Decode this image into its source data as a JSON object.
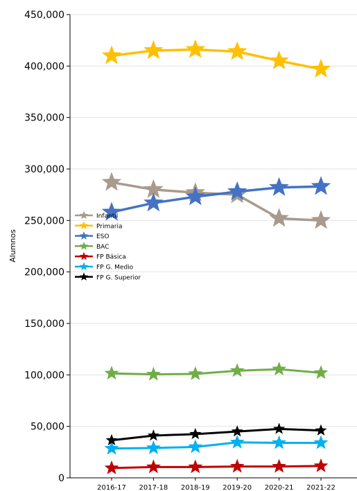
{
  "chart_data": {
    "type": "line",
    "title": "",
    "xlabel": "",
    "ylabel": "Alumnos",
    "categories": [
      "2016-17",
      "2017-18",
      "2018-19",
      "2019-20",
      "2020-21",
      "2021-22"
    ],
    "ylim": [
      0,
      450000
    ],
    "yticks": [
      0,
      50000,
      100000,
      150000,
      200000,
      250000,
      300000,
      350000,
      400000,
      450000
    ],
    "ytick_labels": [
      "0",
      "50,000",
      "100,000",
      "150,000",
      "200,000",
      "250,000",
      "300,000",
      "350,000",
      "400,000",
      "450,000"
    ],
    "grid": "horizontal",
    "legend_position": "center-left",
    "marker": "star",
    "series": [
      {
        "name": "Infantil",
        "color": "#a89a8c",
        "size": "large",
        "values": [
          287000,
          280000,
          277000,
          275000,
          252000,
          250000
        ]
      },
      {
        "name": "Primaria",
        "color": "#ffc000",
        "size": "large",
        "values": [
          410000,
          415000,
          416000,
          414000,
          405000,
          397000
        ]
      },
      {
        "name": "ESO",
        "color": "#4472c4",
        "size": "large",
        "values": [
          258000,
          267000,
          273000,
          278000,
          282000,
          283000
        ]
      },
      {
        "name": "BAC",
        "color": "#70ad47",
        "size": "medium",
        "values": [
          101500,
          100500,
          101000,
          104000,
          105500,
          102000
        ]
      },
      {
        "name": "FP Básica",
        "color": "#c00000",
        "size": "medium",
        "values": [
          9500,
          10500,
          10500,
          11000,
          11000,
          11500
        ]
      },
      {
        "name": "FP G. Medio",
        "color": "#00b0f0",
        "size": "medium",
        "values": [
          28500,
          29000,
          30000,
          34500,
          34000,
          34000
        ]
      },
      {
        "name": "FP G. Superior",
        "color": "#000000",
        "size": "small",
        "values": [
          36500,
          41000,
          42500,
          45000,
          47500,
          46000
        ]
      }
    ]
  }
}
